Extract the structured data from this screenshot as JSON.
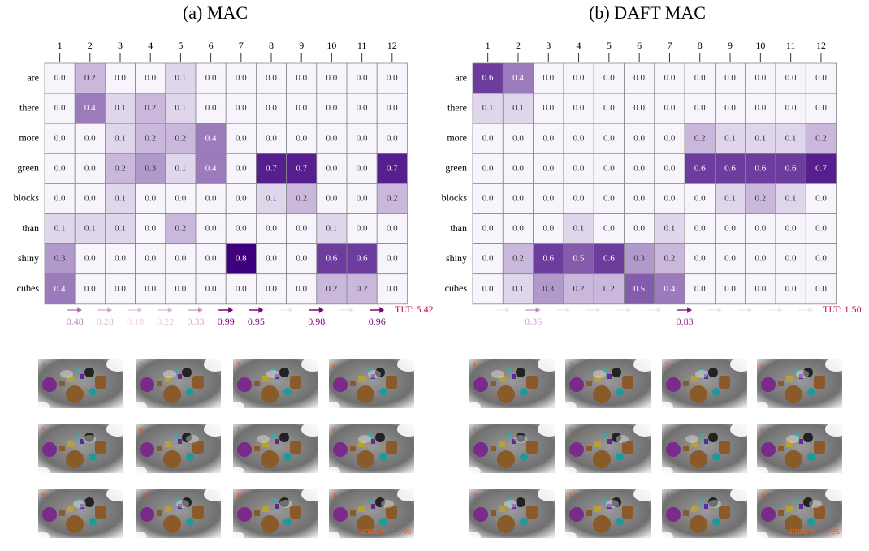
{
  "panels": [
    {
      "title": "(a) MAC",
      "columns": [
        "1",
        "2",
        "3",
        "4",
        "5",
        "6",
        "7",
        "8",
        "9",
        "10",
        "11",
        "12"
      ],
      "rows": [
        {
          "word": "are",
          "cells": [
            "0.0",
            "0.2",
            "0.0",
            "0.0",
            "0.1",
            "0.0",
            "0.0",
            "0.0",
            "0.0",
            "0.0",
            "0.0",
            "0.0"
          ]
        },
        {
          "word": "there",
          "cells": [
            "0.0",
            "0.4",
            "0.1",
            "0.2",
            "0.1",
            "0.0",
            "0.0",
            "0.0",
            "0.0",
            "0.0",
            "0.0",
            "0.0"
          ]
        },
        {
          "word": "more",
          "cells": [
            "0.0",
            "0.0",
            "0.1",
            "0.2",
            "0.2",
            "0.4",
            "0.0",
            "0.0",
            "0.0",
            "0.0",
            "0.0",
            "0.0"
          ]
        },
        {
          "word": "green",
          "cells": [
            "0.0",
            "0.0",
            "0.2",
            "0.3",
            "0.1",
            "0.4",
            "0.0",
            "0.7",
            "0.7",
            "0.0",
            "0.0",
            "0.7"
          ]
        },
        {
          "word": "blocks",
          "cells": [
            "0.0",
            "0.0",
            "0.1",
            "0.0",
            "0.0",
            "0.0",
            "0.0",
            "0.1",
            "0.2",
            "0.0",
            "0.0",
            "0.2"
          ]
        },
        {
          "word": "than",
          "cells": [
            "0.1",
            "0.1",
            "0.1",
            "0.0",
            "0.2",
            "0.0",
            "0.0",
            "0.0",
            "0.0",
            "0.1",
            "0.0",
            "0.0"
          ]
        },
        {
          "word": "shiny",
          "cells": [
            "0.3",
            "0.0",
            "0.0",
            "0.0",
            "0.0",
            "0.0",
            "0.8",
            "0.0",
            "0.0",
            "0.6",
            "0.6",
            "0.0"
          ]
        },
        {
          "word": "cubes",
          "cells": [
            "0.4",
            "0.0",
            "0.0",
            "0.0",
            "0.0",
            "0.0",
            "0.0",
            "0.0",
            "0.0",
            "0.2",
            "0.2",
            "0.0"
          ]
        }
      ],
      "arrows": [
        "0.48",
        "0.28",
        "0.18",
        "0.22",
        "0.33",
        "0.99",
        "0.95",
        null,
        "0.98",
        null,
        "0.96"
      ],
      "tlt": "TLT: 5.42",
      "images": [
        {
          "step": "1"
        },
        {
          "step": "2"
        },
        {
          "step": "3"
        },
        {
          "step": "4"
        },
        {
          "step": "5"
        },
        {
          "step": "6"
        },
        {
          "step": "7"
        },
        {
          "step": "8"
        },
        {
          "step": "9"
        },
        {
          "step": "10"
        },
        {
          "step": "11"
        },
        {
          "step": "12",
          "answer": "answer : yes"
        }
      ]
    },
    {
      "title": "(b) DAFT MAC",
      "columns": [
        "1",
        "2",
        "3",
        "4",
        "5",
        "6",
        "7",
        "8",
        "9",
        "10",
        "11",
        "12"
      ],
      "rows": [
        {
          "word": "are",
          "cells": [
            "0.6",
            "0.4",
            "0.0",
            "0.0",
            "0.0",
            "0.0",
            "0.0",
            "0.0",
            "0.0",
            "0.0",
            "0.0",
            "0.0"
          ]
        },
        {
          "word": "there",
          "cells": [
            "0.1",
            "0.1",
            "0.0",
            "0.0",
            "0.0",
            "0.0",
            "0.0",
            "0.0",
            "0.0",
            "0.0",
            "0.0",
            "0.0"
          ]
        },
        {
          "word": "more",
          "cells": [
            "0.0",
            "0.0",
            "0.0",
            "0.0",
            "0.0",
            "0.0",
            "0.0",
            "0.2",
            "0.1",
            "0.1",
            "0.1",
            "0.2"
          ]
        },
        {
          "word": "green",
          "cells": [
            "0.0",
            "0.0",
            "0.0",
            "0.0",
            "0.0",
            "0.0",
            "0.0",
            "0.6",
            "0.6",
            "0.6",
            "0.6",
            "0.7"
          ]
        },
        {
          "word": "blocks",
          "cells": [
            "0.0",
            "0.0",
            "0.0",
            "0.0",
            "0.0",
            "0.0",
            "0.0",
            "0.0",
            "0.1",
            "0.2",
            "0.1",
            "0.0"
          ]
        },
        {
          "word": "than",
          "cells": [
            "0.0",
            "0.0",
            "0.0",
            "0.1",
            "0.0",
            "0.0",
            "0.1",
            "0.0",
            "0.0",
            "0.0",
            "0.0",
            "0.0"
          ]
        },
        {
          "word": "shiny",
          "cells": [
            "0.0",
            "0.2",
            "0.6",
            "0.5",
            "0.6",
            "0.3",
            "0.2",
            "0.0",
            "0.0",
            "0.0",
            "0.0",
            "0.0"
          ]
        },
        {
          "word": "cubes",
          "cells": [
            "0.0",
            "0.1",
            "0.3",
            "0.2",
            "0.2",
            "0.5",
            "0.4",
            "0.0",
            "0.0",
            "0.0",
            "0.0",
            "0.0"
          ]
        }
      ],
      "arrows": [
        null,
        "0.36",
        null,
        null,
        null,
        null,
        "0.83",
        null,
        null,
        null,
        null
      ],
      "tlt": "TLT: 1.50",
      "images": [
        {
          "step": "1"
        },
        {
          "step": "2"
        },
        {
          "step": "3"
        },
        {
          "step": "4"
        },
        {
          "step": "5"
        },
        {
          "step": "6"
        },
        {
          "step": "7"
        },
        {
          "step": "8"
        },
        {
          "step": "9"
        },
        {
          "step": "10"
        },
        {
          "step": "11"
        },
        {
          "step": "12",
          "answer": "answer : yes"
        }
      ]
    }
  ]
}
